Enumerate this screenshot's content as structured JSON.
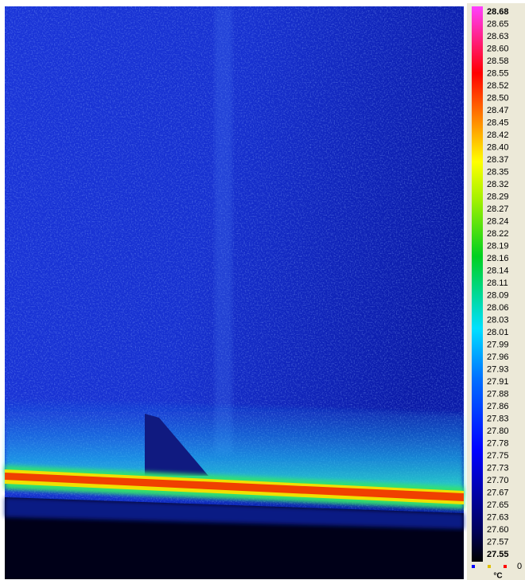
{
  "colorbar": {
    "labels": [
      "28.68",
      "28.65",
      "28.63",
      "28.60",
      "28.58",
      "28.55",
      "28.52",
      "28.50",
      "28.47",
      "28.45",
      "28.42",
      "28.40",
      "28.37",
      "28.35",
      "28.32",
      "28.29",
      "28.27",
      "28.24",
      "28.22",
      "28.19",
      "28.16",
      "28.14",
      "28.11",
      "28.09",
      "28.06",
      "28.03",
      "28.01",
      "27.99",
      "27.96",
      "27.93",
      "27.91",
      "27.88",
      "27.86",
      "27.83",
      "27.80",
      "27.78",
      "27.75",
      "27.73",
      "27.70",
      "27.67",
      "27.65",
      "27.63",
      "27.60",
      "27.57",
      "27.55"
    ],
    "unit": "°C",
    "status": "0"
  }
}
